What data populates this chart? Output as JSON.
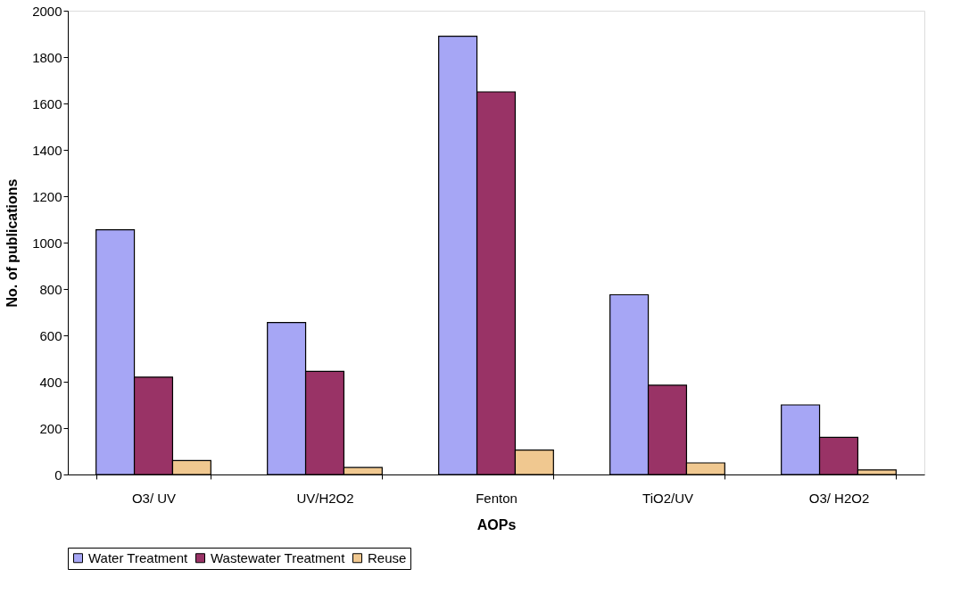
{
  "chart_data": {
    "type": "bar",
    "xlabel": "AOPs",
    "ylabel": "No. of publications",
    "categories": [
      "O3/ UV",
      "UV/H2O2",
      "Fenton",
      "TiO2/UV",
      "O3/ H2O2"
    ],
    "series": [
      {
        "name": "Water Treatment",
        "color": "#a6a6f5",
        "values": [
          1055,
          655,
          1890,
          775,
          300
        ]
      },
      {
        "name": "Wastewater Treatment",
        "color": "#993366",
        "values": [
          420,
          445,
          1650,
          385,
          160
        ]
      },
      {
        "name": "Reuse",
        "color": "#f0c890",
        "values": [
          60,
          30,
          105,
          50,
          20
        ]
      }
    ],
    "ylim": [
      0,
      2000
    ],
    "yticks": [
      0,
      200,
      400,
      600,
      800,
      1000,
      1200,
      1400,
      1600,
      1800,
      2000
    ],
    "grid": false,
    "legend": "bottom"
  }
}
